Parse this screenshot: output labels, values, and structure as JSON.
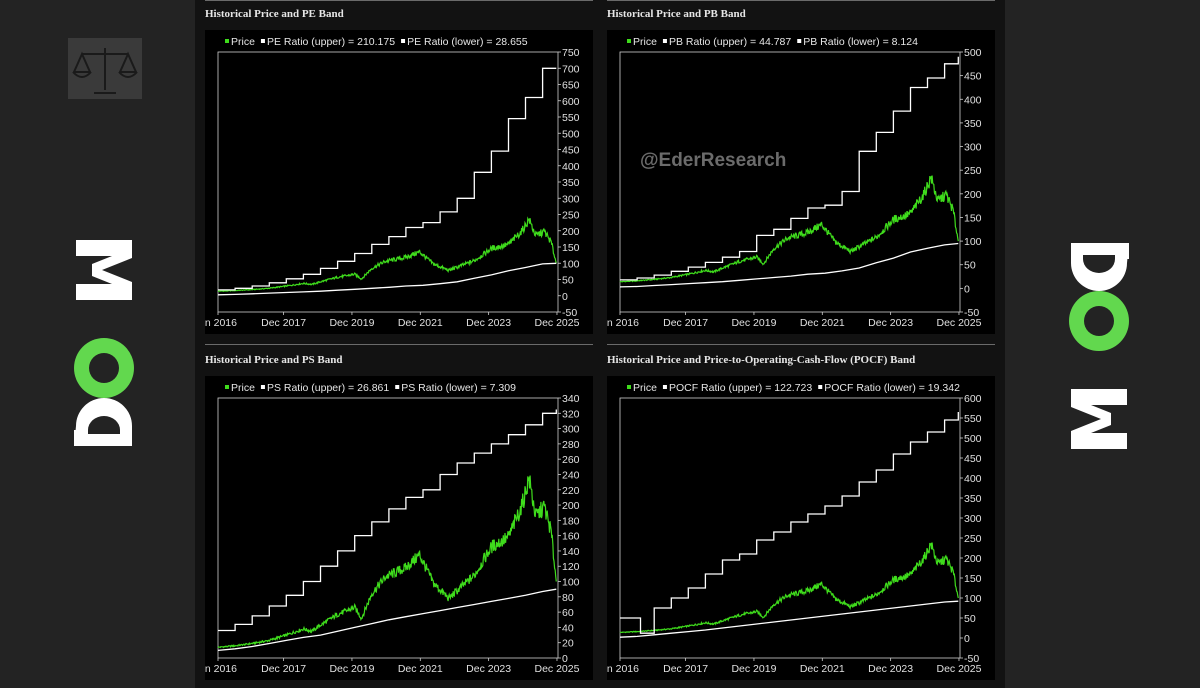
{
  "brand": {
    "logo_text": "now",
    "accent": "#62d84e"
  },
  "watermark": "@EderResearch",
  "colors": {
    "price": "#3fdc1c",
    "band": "#ffffff",
    "background": "#000000"
  },
  "chart_data": [
    {
      "type": "line",
      "title": "Historical Price and PE Band",
      "x_ticks": [
        "an 2016",
        "Dec 2017",
        "Dec 2019",
        "Dec 2021",
        "Dec 2023",
        "Dec 2025"
      ],
      "ylim": [
        -50,
        750
      ],
      "y_ticks": [
        -50,
        0,
        50,
        100,
        150,
        200,
        250,
        300,
        350,
        400,
        450,
        500,
        550,
        600,
        650,
        700,
        750
      ],
      "legend": {
        "price": "Price",
        "upper": "PE Ratio (upper) = 210.175",
        "lower": "PE Ratio (lower) = 28.655"
      },
      "series": [
        {
          "name": "Price",
          "kind": "price",
          "x": [
            2016.0,
            2016.5,
            2017.0,
            2017.5,
            2018.0,
            2018.5,
            2018.75,
            2019.0,
            2019.5,
            2020.0,
            2020.2,
            2020.5,
            2020.9,
            2021.5,
            2021.9,
            2022.3,
            2022.75,
            2023.0,
            2023.5,
            2024.0,
            2024.5,
            2024.9,
            2025.1,
            2025.3,
            2025.55,
            2025.75,
            2025.9
          ],
          "y": [
            14,
            16,
            19,
            23,
            30,
            38,
            35,
            43,
            57,
            66,
            52,
            84,
            106,
            118,
            135,
            98,
            78,
            88,
            108,
            145,
            158,
            200,
            235,
            185,
            198,
            165,
            100
          ]
        },
        {
          "name": "PE Ratio (upper)",
          "kind": "upper",
          "x": [
            2016.0,
            2016.5,
            2017.0,
            2017.5,
            2018.0,
            2018.5,
            2019.0,
            2019.5,
            2020.0,
            2020.5,
            2021.0,
            2021.5,
            2022.0,
            2022.5,
            2023.0,
            2023.5,
            2024.0,
            2024.5,
            2025.0,
            2025.5,
            2025.9
          ],
          "y": [
            18,
            23,
            30,
            40,
            52,
            66,
            84,
            106,
            130,
            158,
            182,
            210,
            225,
            258,
            300,
            380,
            445,
            545,
            610,
            700,
            700
          ]
        },
        {
          "name": "PE Ratio (lower)",
          "kind": "lower",
          "x": [
            2016.0,
            2016.5,
            2017.0,
            2017.5,
            2018.0,
            2018.5,
            2019.0,
            2019.5,
            2020.0,
            2020.5,
            2021.0,
            2021.5,
            2022.0,
            2022.5,
            2023.0,
            2023.5,
            2024.0,
            2024.5,
            2025.0,
            2025.5,
            2025.9
          ],
          "y": [
            3,
            4,
            6,
            8,
            10,
            12,
            14,
            17,
            20,
            23,
            26,
            30,
            32,
            37,
            43,
            54,
            64,
            77,
            87,
            98,
            100
          ]
        }
      ]
    },
    {
      "type": "line",
      "title": "Historical Price and PB Band",
      "x_ticks": [
        "an 2016",
        "Dec 2017",
        "Dec 2019",
        "Dec 2021",
        "Dec 2023",
        "Dec 2025"
      ],
      "ylim": [
        -50,
        500
      ],
      "y_ticks": [
        -50,
        0,
        50,
        100,
        150,
        200,
        250,
        300,
        350,
        400,
        450,
        500
      ],
      "legend": {
        "price": "Price",
        "upper": "PB Ratio (upper) = 44.787",
        "lower": "PB Ratio (lower) = 8.124"
      },
      "series": [
        {
          "name": "Price",
          "kind": "price",
          "x": [
            2016.0,
            2016.5,
            2017.0,
            2017.5,
            2018.0,
            2018.5,
            2018.75,
            2019.0,
            2019.5,
            2020.0,
            2020.2,
            2020.5,
            2020.9,
            2021.5,
            2021.9,
            2022.3,
            2022.75,
            2023.0,
            2023.5,
            2024.0,
            2024.5,
            2024.9,
            2025.1,
            2025.3,
            2025.55,
            2025.75,
            2025.9
          ],
          "y": [
            14,
            16,
            19,
            23,
            30,
            38,
            35,
            43,
            57,
            66,
            52,
            84,
            106,
            118,
            135,
            98,
            78,
            88,
            108,
            145,
            158,
            200,
            235,
            185,
            198,
            165,
            100
          ]
        },
        {
          "name": "PB Ratio (upper)",
          "kind": "upper",
          "x": [
            2016.0,
            2016.5,
            2017.0,
            2017.5,
            2018.0,
            2018.5,
            2019.0,
            2019.5,
            2020.0,
            2020.5,
            2021.0,
            2021.5,
            2022.0,
            2022.5,
            2023.0,
            2023.5,
            2024.0,
            2024.5,
            2025.0,
            2025.5,
            2025.9
          ],
          "y": [
            18,
            22,
            28,
            36,
            45,
            55,
            66,
            78,
            112,
            125,
            148,
            170,
            176,
            205,
            290,
            330,
            375,
            425,
            445,
            475,
            490
          ]
        },
        {
          "name": "PB Ratio (lower)",
          "kind": "lower",
          "x": [
            2016.0,
            2016.5,
            2017.0,
            2017.5,
            2018.0,
            2018.5,
            2019.0,
            2019.5,
            2020.0,
            2020.5,
            2021.0,
            2021.5,
            2022.0,
            2022.5,
            2023.0,
            2023.5,
            2024.0,
            2024.5,
            2025.0,
            2025.5,
            2025.9
          ],
          "y": [
            3,
            4,
            6,
            8,
            10,
            12,
            14,
            17,
            20,
            23,
            26,
            30,
            32,
            37,
            43,
            54,
            64,
            77,
            85,
            92,
            95
          ]
        }
      ]
    },
    {
      "type": "line",
      "title": "Historical Price and PS Band",
      "x_ticks": [
        "an 2016",
        "Dec 2017",
        "Dec 2019",
        "Dec 2021",
        "Dec 2023",
        "Dec 2025"
      ],
      "ylim": [
        0,
        340
      ],
      "y_ticks": [
        0,
        20,
        40,
        60,
        80,
        100,
        120,
        140,
        160,
        180,
        200,
        220,
        240,
        260,
        280,
        300,
        320,
        340
      ],
      "legend": {
        "price": "Price",
        "upper": "PS Ratio (upper) = 26.861",
        "lower": "PS Ratio (lower) = 7.309"
      },
      "series": [
        {
          "name": "Price",
          "kind": "price",
          "x": [
            2016.0,
            2016.5,
            2017.0,
            2017.5,
            2018.0,
            2018.5,
            2018.75,
            2019.0,
            2019.5,
            2020.0,
            2020.2,
            2020.5,
            2020.9,
            2021.5,
            2021.9,
            2022.3,
            2022.75,
            2023.0,
            2023.5,
            2024.0,
            2024.5,
            2024.9,
            2025.1,
            2025.3,
            2025.55,
            2025.75,
            2025.9
          ],
          "y": [
            14,
            16,
            19,
            23,
            30,
            38,
            35,
            43,
            57,
            66,
            52,
            84,
            106,
            118,
            135,
            98,
            78,
            88,
            108,
            145,
            158,
            200,
            235,
            185,
            198,
            165,
            100
          ]
        },
        {
          "name": "PS Ratio (upper)",
          "kind": "upper",
          "x": [
            2016.0,
            2016.5,
            2017.0,
            2017.5,
            2018.0,
            2018.5,
            2019.0,
            2019.5,
            2020.0,
            2020.5,
            2021.0,
            2021.5,
            2022.0,
            2022.5,
            2023.0,
            2023.5,
            2024.0,
            2024.5,
            2025.0,
            2025.5,
            2025.9
          ],
          "y": [
            36,
            44,
            55,
            68,
            82,
            100,
            120,
            140,
            160,
            178,
            195,
            210,
            220,
            240,
            255,
            268,
            280,
            292,
            305,
            320,
            325
          ]
        },
        {
          "name": "PS Ratio (lower)",
          "kind": "lower",
          "x": [
            2016.0,
            2016.5,
            2017.0,
            2017.5,
            2018.0,
            2018.5,
            2019.0,
            2019.5,
            2020.0,
            2020.5,
            2021.0,
            2021.5,
            2022.0,
            2022.5,
            2023.0,
            2023.5,
            2024.0,
            2024.5,
            2025.0,
            2025.5,
            2025.9
          ],
          "y": [
            10,
            12,
            15,
            19,
            23,
            27,
            30,
            35,
            40,
            45,
            50,
            54,
            58,
            62,
            66,
            70,
            74,
            78,
            82,
            87,
            90
          ]
        }
      ]
    },
    {
      "type": "line",
      "title": "Historical Price and Price-to-Operating-Cash-Flow (POCF) Band",
      "x_ticks": [
        "an 2016",
        "Dec 2017",
        "Dec 2019",
        "Dec 2021",
        "Dec 2023",
        "Dec 2025"
      ],
      "ylim": [
        -50,
        600
      ],
      "y_ticks": [
        -50,
        0,
        50,
        100,
        150,
        200,
        250,
        300,
        350,
        400,
        450,
        500,
        550,
        600
      ],
      "legend": {
        "price": "Price",
        "upper": "POCF Ratio (upper) = 122.723",
        "lower": "POCF Ratio (lower) = 19.342"
      },
      "series": [
        {
          "name": "Price",
          "kind": "price",
          "x": [
            2016.0,
            2016.5,
            2017.0,
            2017.5,
            2018.0,
            2018.5,
            2018.75,
            2019.0,
            2019.5,
            2020.0,
            2020.2,
            2020.5,
            2020.9,
            2021.5,
            2021.9,
            2022.3,
            2022.75,
            2023.0,
            2023.5,
            2024.0,
            2024.5,
            2024.9,
            2025.1,
            2025.3,
            2025.55,
            2025.75,
            2025.9
          ],
          "y": [
            14,
            16,
            19,
            23,
            30,
            38,
            35,
            43,
            57,
            66,
            52,
            84,
            106,
            118,
            135,
            98,
            78,
            88,
            108,
            145,
            158,
            200,
            235,
            185,
            198,
            165,
            100
          ]
        },
        {
          "name": "POCF Ratio (upper)",
          "kind": "upper",
          "x": [
            2016.0,
            2016.5,
            2016.6,
            2017.0,
            2017.5,
            2018.0,
            2018.5,
            2019.0,
            2019.5,
            2020.0,
            2020.5,
            2021.0,
            2021.5,
            2022.0,
            2022.5,
            2023.0,
            2023.5,
            2024.0,
            2024.5,
            2025.0,
            2025.5,
            2025.9
          ],
          "y": [
            50,
            50,
            12,
            75,
            100,
            125,
            160,
            195,
            210,
            245,
            265,
            290,
            310,
            330,
            355,
            390,
            420,
            460,
            490,
            515,
            545,
            565
          ]
        },
        {
          "name": "POCF Ratio (lower)",
          "kind": "lower",
          "x": [
            2016.0,
            2016.5,
            2017.0,
            2017.5,
            2018.0,
            2018.5,
            2019.0,
            2019.5,
            2020.0,
            2020.5,
            2021.0,
            2021.5,
            2022.0,
            2022.5,
            2023.0,
            2023.5,
            2024.0,
            2024.5,
            2025.0,
            2025.5,
            2025.9
          ],
          "y": [
            2,
            4,
            8,
            12,
            16,
            20,
            25,
            30,
            35,
            40,
            45,
            50,
            55,
            60,
            65,
            70,
            75,
            80,
            85,
            90,
            92
          ]
        }
      ]
    }
  ]
}
